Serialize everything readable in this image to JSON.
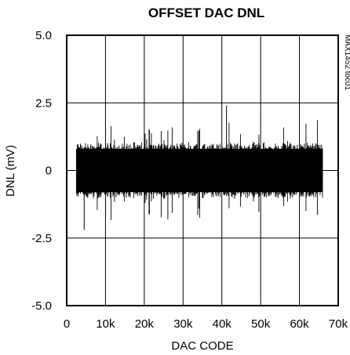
{
  "chart_data": {
    "type": "line",
    "title": "OFFSET DAC DNL",
    "xlabel": "DAC CODE",
    "ylabel": "DNL (mV)",
    "side_note": "MAX1452 toc01",
    "xlim": [
      0,
      70000
    ],
    "ylim": [
      -5.0,
      5.0
    ],
    "x_ticks": [
      0,
      10000,
      20000,
      30000,
      40000,
      50000,
      60000,
      70000
    ],
    "x_tick_labels": [
      "0",
      "10k",
      "20k",
      "30k",
      "40k",
      "50k",
      "60k",
      "70k"
    ],
    "y_ticks": [
      5.0,
      2.5,
      0,
      -2.5,
      -5.0
    ],
    "y_tick_labels": [
      "5.0",
      "2.5",
      "0",
      "-2.5",
      "-5.0"
    ],
    "grid": true,
    "series": [
      {
        "x_range": [
          2500,
          66000
        ],
        "center": 0,
        "band": [
          -0.8,
          0.8
        ],
        "peak_max": 2.4,
        "peak_min": -2.2,
        "color": "#000000"
      }
    ]
  }
}
